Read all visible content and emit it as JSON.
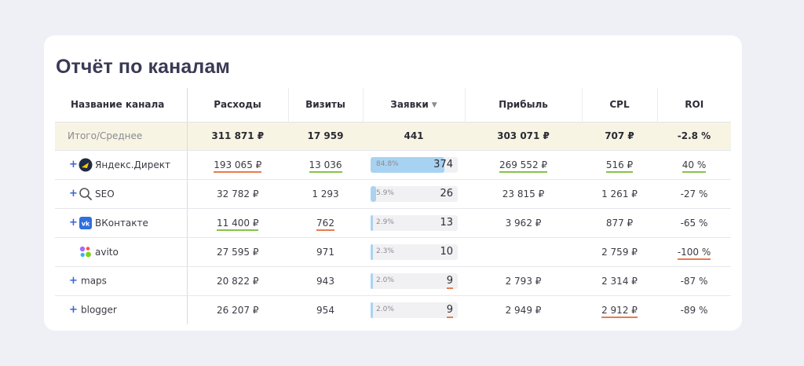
{
  "title": "Отчёт по каналам",
  "columns": {
    "name": "Название канала",
    "expenses": "Расходы",
    "visits": "Визиты",
    "leads": "Заявки",
    "leads_sort_icon": "sort-descending-icon",
    "profit": "Прибыль",
    "cpl": "CPL",
    "roi": "ROI"
  },
  "total": {
    "name": "Итого/Среднее",
    "expenses": "311 871 ₽",
    "visits": "17 959",
    "leads": "441",
    "profit": "303 071 ₽",
    "cpl": "707 ₽",
    "roi": "-2.8 %"
  },
  "colors": {
    "accent": "#3a62d6",
    "underline_good": "#86c24a",
    "underline_bad": "#e97b4e",
    "bar": "#abd3ef",
    "total_bg": "#f8f4e4"
  },
  "rows": [
    {
      "expandable": true,
      "icon": "yandex-direct-icon",
      "name": "Яндекс.Директ",
      "expenses": "193 065 ₽",
      "visits": "13 036",
      "leads_pct": "84.8%",
      "leads_fraction": 0.848,
      "leads": "374",
      "profit": "269 552 ₽",
      "cpl": "516 ₽",
      "roi": "40 %"
    },
    {
      "expandable": true,
      "icon": "search-icon",
      "name": "SEO",
      "expenses": "32 782 ₽",
      "visits": "1 293",
      "leads_pct": "5.9%",
      "leads_fraction": 0.059,
      "leads": "26",
      "profit": "23 815 ₽",
      "cpl": "1 261 ₽",
      "roi": "-27 %"
    },
    {
      "expandable": true,
      "icon": "vk-icon",
      "name": "ВКонтакте",
      "expenses": "11 400 ₽",
      "visits": "762",
      "leads_pct": "2.9%",
      "leads_fraction": 0.029,
      "leads": "13",
      "profit": "3 962 ₽",
      "cpl": "877 ₽",
      "roi": "-65 %"
    },
    {
      "expandable": false,
      "icon": "avito-icon",
      "name": "avito",
      "expenses": "27 595 ₽",
      "visits": "971",
      "leads_pct": "2.3%",
      "leads_fraction": 0.023,
      "leads": "10",
      "profit": "",
      "cpl": "2 759 ₽",
      "roi": "-100 %"
    },
    {
      "expandable": true,
      "icon": "",
      "name": "maps",
      "expenses": "20 822 ₽",
      "visits": "943",
      "leads_pct": "2.0%",
      "leads_fraction": 0.02,
      "leads": "9",
      "profit": "2 793 ₽",
      "cpl": "2 314 ₽",
      "roi": "-87 %"
    },
    {
      "expandable": true,
      "icon": "",
      "name": "blogger",
      "expenses": "26 207 ₽",
      "visits": "954",
      "leads_pct": "2.0%",
      "leads_fraction": 0.02,
      "leads": "9",
      "profit": "2 949 ₽",
      "cpl": "2 912 ₽",
      "roi": "-89 %"
    }
  ]
}
